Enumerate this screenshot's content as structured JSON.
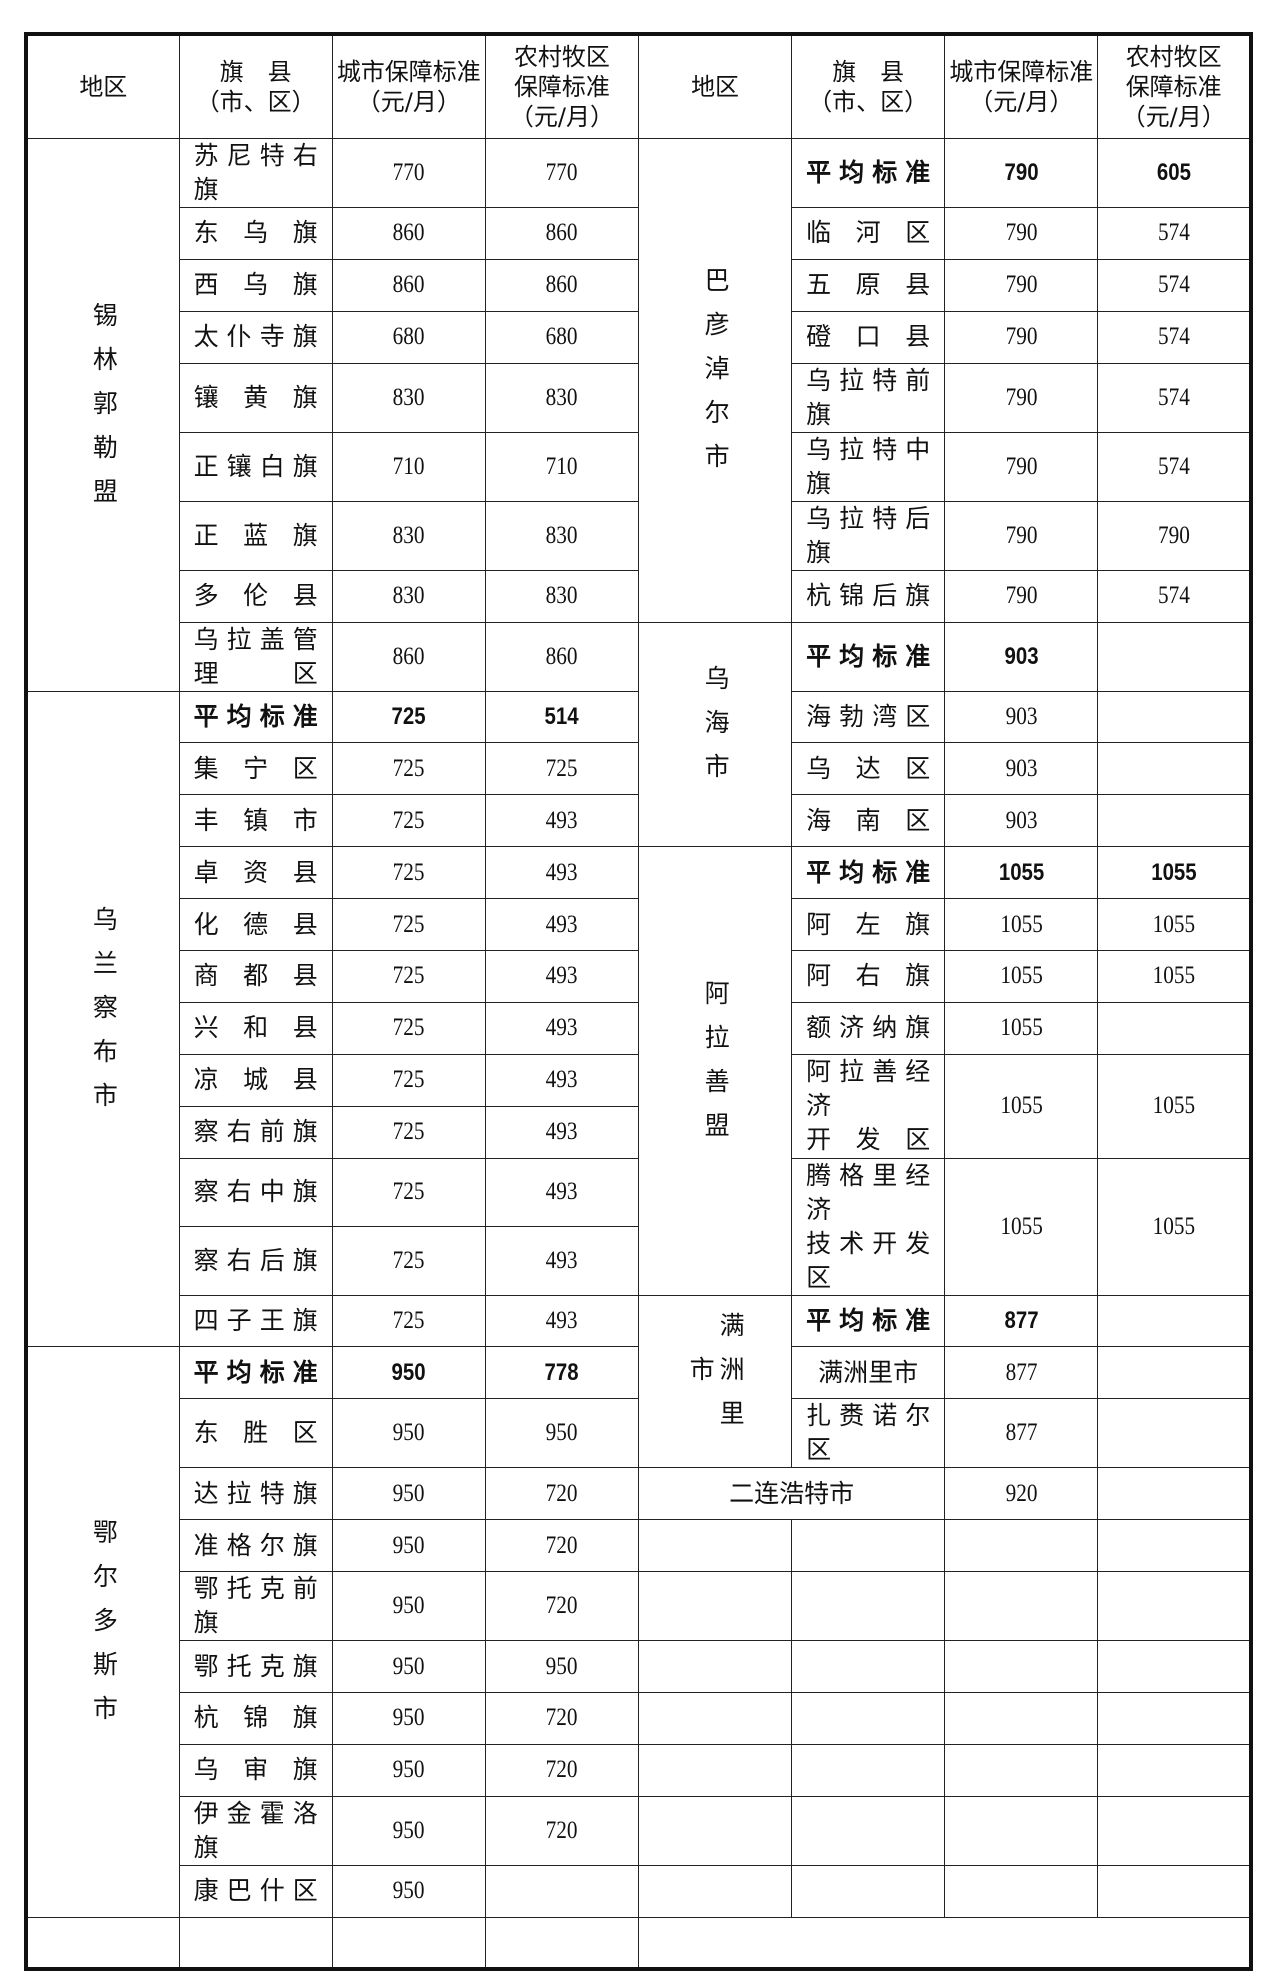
{
  "headers": [
    "地区",
    "旗　县\n（市、区）",
    "城市保障标准\n（元/月）",
    "农村牧区\n保障标准\n（元/月）",
    "地区",
    "旗　县\n（市、区）",
    "城市保障标准\n（元/月）",
    "农村牧区\n保障标准\n（元/月）"
  ],
  "left_groups": [
    {
      "region": "锡林郭勒盟",
      "rows": [
        {
          "name": "苏尼特右旗",
          "urban": "770",
          "rural": "770"
        },
        {
          "name": "东乌旗",
          "urban": "860",
          "rural": "860"
        },
        {
          "name": "西乌旗",
          "urban": "860",
          "rural": "860"
        },
        {
          "name": "太仆寺旗",
          "urban": "680",
          "rural": "680"
        },
        {
          "name": "镶黄旗",
          "urban": "830",
          "rural": "830"
        },
        {
          "name": "正镶白旗",
          "urban": "710",
          "rural": "710"
        },
        {
          "name": "正蓝旗",
          "urban": "830",
          "rural": "830"
        },
        {
          "name": "多伦县",
          "urban": "830",
          "rural": "830"
        },
        {
          "name": "乌拉盖管理区",
          "urban": "860",
          "rural": "860"
        }
      ]
    },
    {
      "region": "乌兰察布市",
      "rows": [
        {
          "name": "平均标准",
          "urban": "725",
          "rural": "514"
        },
        {
          "name": "集宁区",
          "urban": "725",
          "rural": "725"
        },
        {
          "name": "丰镇市",
          "urban": "725",
          "rural": "493"
        },
        {
          "name": "卓资县",
          "urban": "725",
          "rural": "493"
        },
        {
          "name": "化德县",
          "urban": "725",
          "rural": "493"
        },
        {
          "name": "商都县",
          "urban": "725",
          "rural": "493"
        },
        {
          "name": "兴和县",
          "urban": "725",
          "rural": "493"
        },
        {
          "name": "凉城县",
          "urban": "725",
          "rural": "493"
        },
        {
          "name": "察右前旗",
          "urban": "725",
          "rural": "493"
        },
        {
          "name": "察右中旗",
          "urban": "725",
          "rural": "493"
        },
        {
          "name": "察右后旗",
          "urban": "725",
          "rural": "493"
        },
        {
          "name": "四子王旗",
          "urban": "725",
          "rural": "493"
        }
      ]
    },
    {
      "region": "鄂尔多斯市",
      "rows": [
        {
          "name": "平均标准",
          "urban": "950",
          "rural": "778"
        },
        {
          "name": "东胜区",
          "urban": "950",
          "rural": "950"
        },
        {
          "name": "达拉特旗",
          "urban": "950",
          "rural": "720"
        },
        {
          "name": "准格尔旗",
          "urban": "950",
          "rural": "720"
        },
        {
          "name": "鄂托克前旗",
          "urban": "950",
          "rural": "720"
        },
        {
          "name": "鄂托克旗",
          "urban": "950",
          "rural": "950"
        },
        {
          "name": "杭锦旗",
          "urban": "950",
          "rural": "720"
        },
        {
          "name": "乌审旗",
          "urban": "950",
          "rural": "720"
        },
        {
          "name": "伊金霍洛旗",
          "urban": "950",
          "rural": "720"
        },
        {
          "name": "康巴什区",
          "urban": "950",
          "rural": ""
        }
      ]
    }
  ],
  "right_groups": [
    {
      "region": "巴彦淖尔市",
      "rows": [
        {
          "name": "平均标准",
          "urban": "790",
          "rural": "605"
        },
        {
          "name": "临河区",
          "urban": "790",
          "rural": "574"
        },
        {
          "name": "五原县",
          "urban": "790",
          "rural": "574"
        },
        {
          "name": "磴口县",
          "urban": "790",
          "rural": "574"
        },
        {
          "name": "乌拉特前旗",
          "urban": "790",
          "rural": "574"
        },
        {
          "name": "乌拉特中旗",
          "urban": "790",
          "rural": "574"
        },
        {
          "name": "乌拉特后旗",
          "urban": "790",
          "rural": "790"
        },
        {
          "name": "杭锦后旗",
          "urban": "790",
          "rural": "574"
        }
      ]
    },
    {
      "region": "乌海市",
      "rows": [
        {
          "name": "平均标准",
          "urban": "903",
          "rural": ""
        },
        {
          "name": "海勃湾区",
          "urban": "903",
          "rural": ""
        },
        {
          "name": "乌达区",
          "urban": "903",
          "rural": ""
        },
        {
          "name": "海南区",
          "urban": "903",
          "rural": ""
        }
      ]
    },
    {
      "region": "阿拉善盟",
      "rows": [
        {
          "name": "平均标准",
          "urban": "1055",
          "rural": "1055"
        },
        {
          "name": "阿左旗",
          "urban": "1055",
          "rural": "1055"
        },
        {
          "name": "阿右旗",
          "urban": "1055",
          "rural": "1055"
        },
        {
          "name": "额济纳旗",
          "urban": "1055",
          "rural": ""
        },
        {
          "name": "阿拉善经济\n开发区",
          "urban": "1055",
          "rural": "1055",
          "span": 2
        },
        {
          "name": "腾格里经济\n技术开发区",
          "urban": "1055",
          "rural": "1055",
          "span": 2
        }
      ]
    },
    {
      "region": "满洲里市",
      "rows": [
        {
          "name": "平均标准",
          "urban": "877",
          "rural": ""
        },
        {
          "name": "满洲里市",
          "urban": "877",
          "rural": ""
        },
        {
          "name": "扎赉诺尔区",
          "urban": "877",
          "rural": ""
        }
      ]
    }
  ],
  "erlian": {
    "name": "二连浩特市",
    "urban": "920",
    "rural": ""
  }
}
